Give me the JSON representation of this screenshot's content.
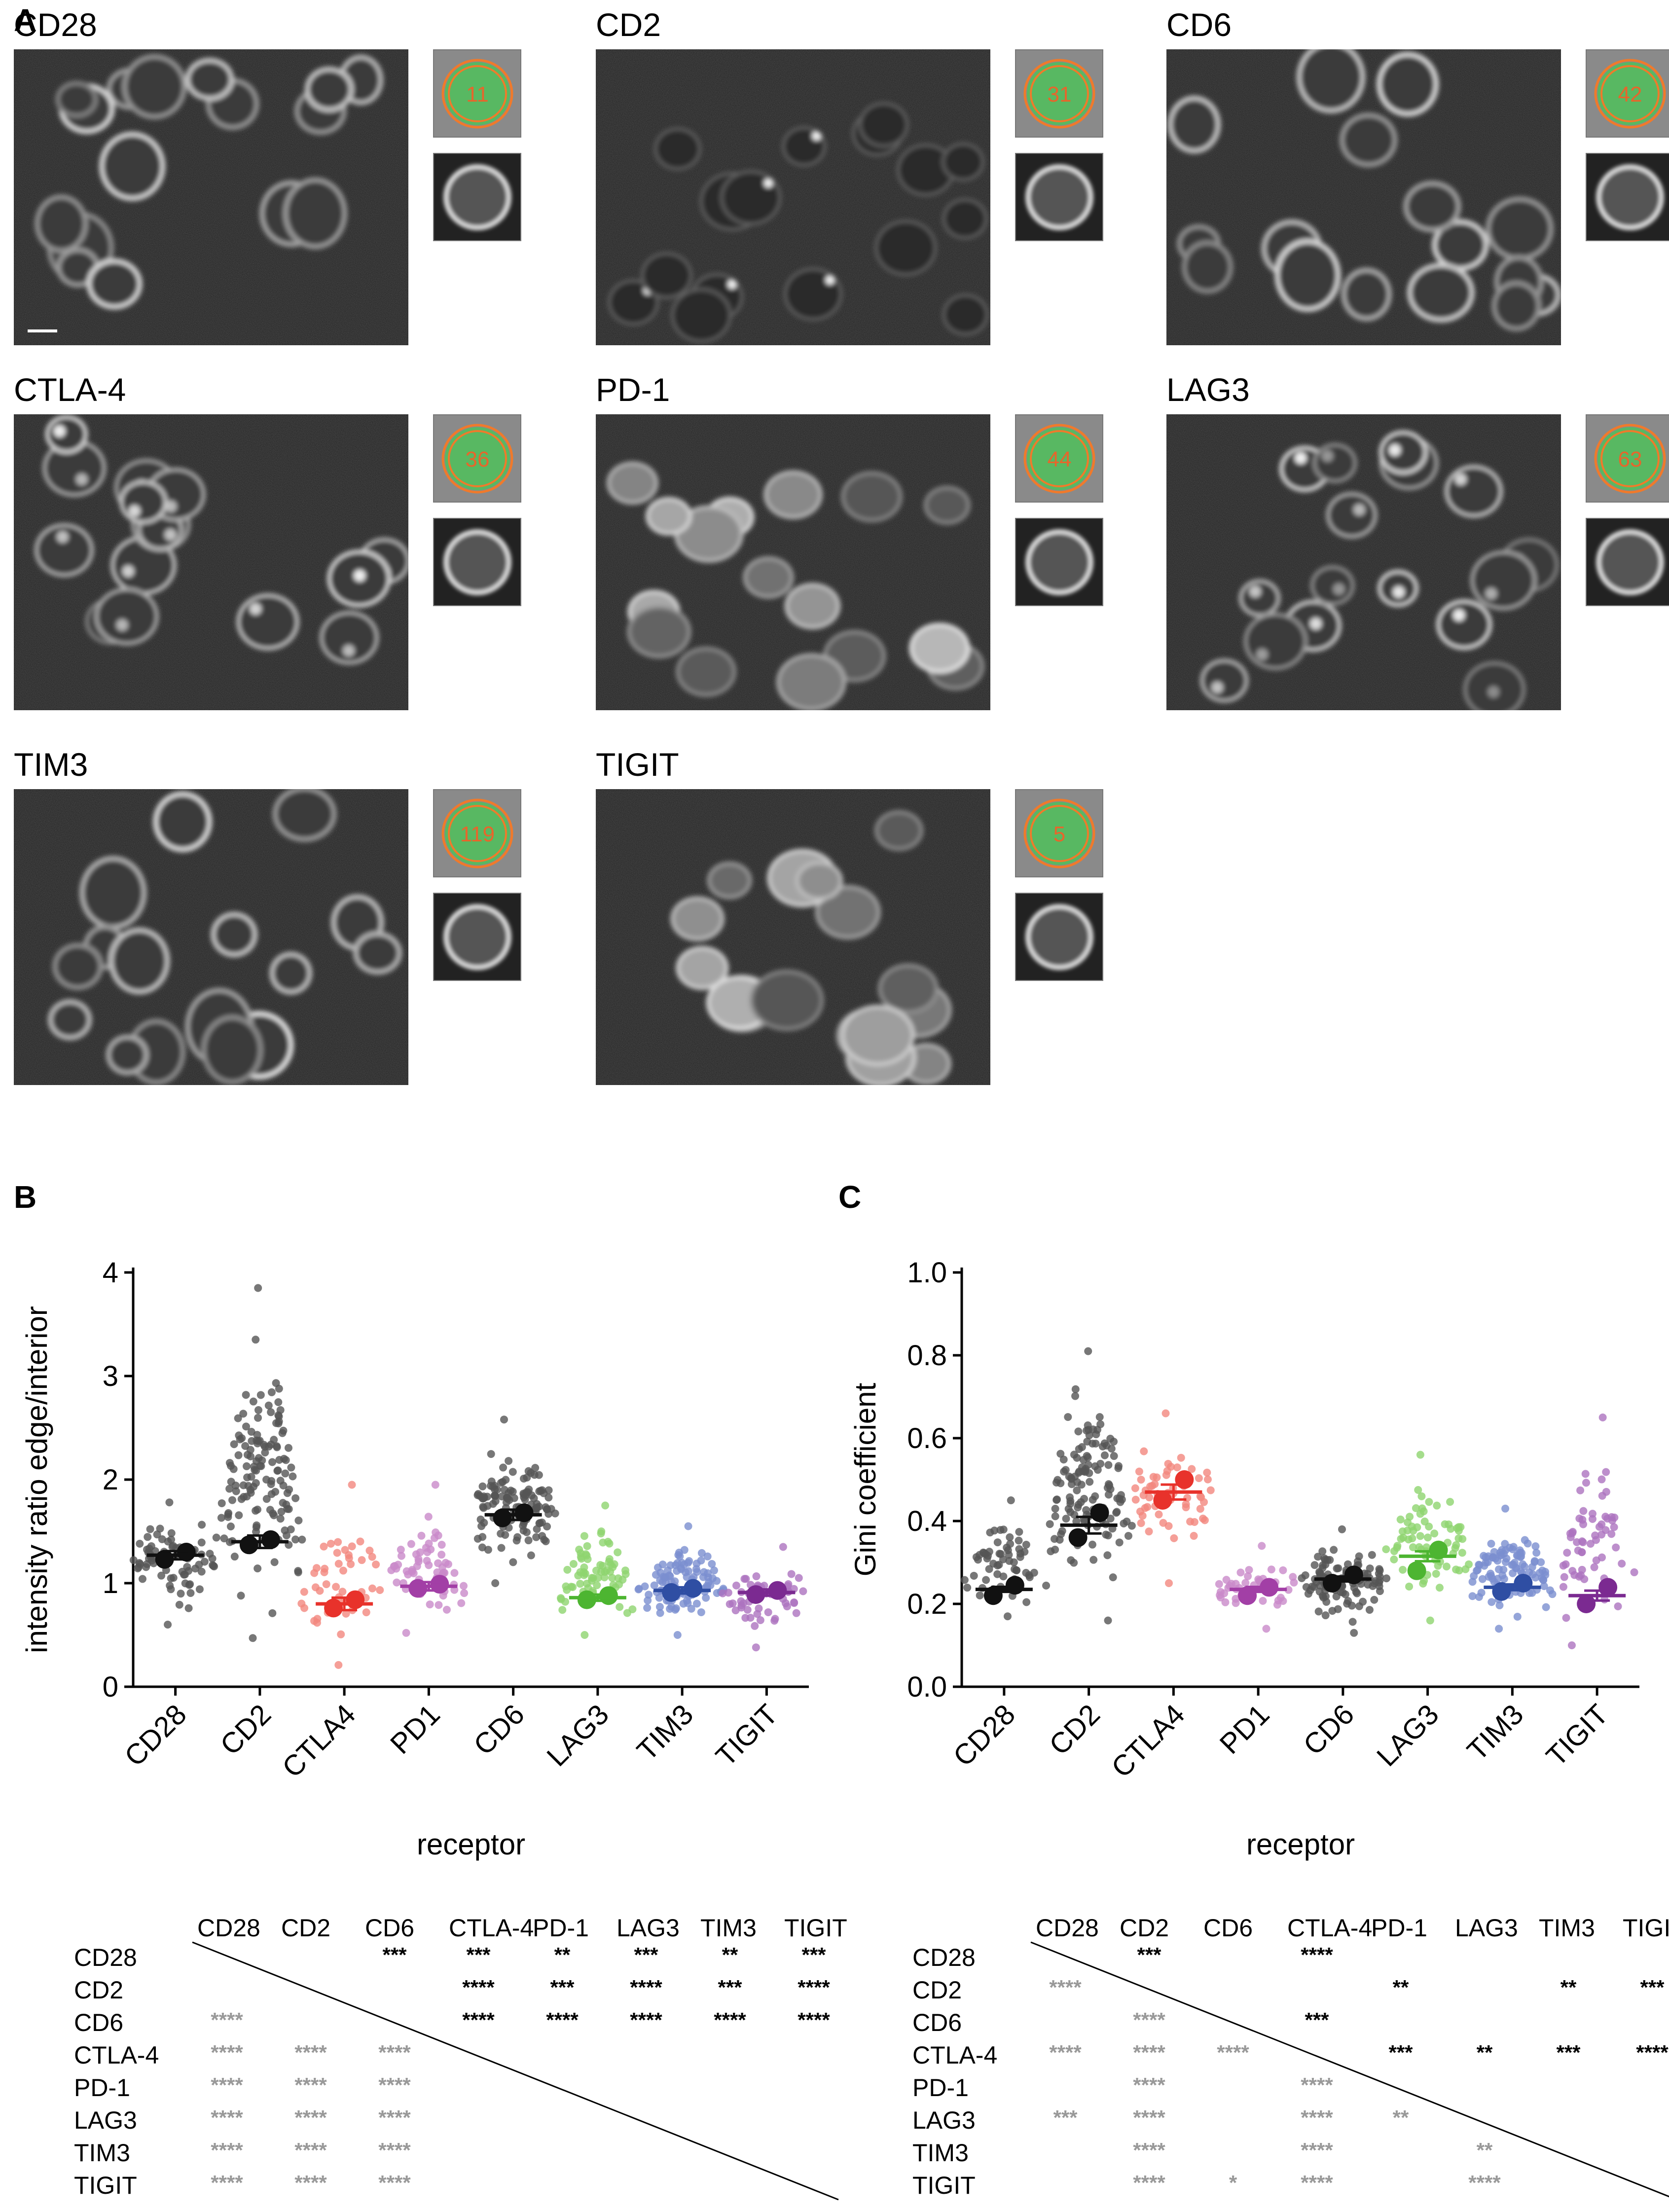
{
  "panel_letters": {
    "a": "A",
    "b": "B",
    "c": "C"
  },
  "panel_a": {
    "images": [
      {
        "label": "CD28",
        "roi_number": "11",
        "style": "rim"
      },
      {
        "label": "CD2",
        "roi_number": "31",
        "style": "spots"
      },
      {
        "label": "CD6",
        "roi_number": "42",
        "style": "rim"
      },
      {
        "label": "CTLA-4",
        "roi_number": "36",
        "style": "patchy"
      },
      {
        "label": "PD-1",
        "roi_number": "44",
        "style": "diffuse"
      },
      {
        "label": "LAG3",
        "roi_number": "63",
        "style": "patchy"
      },
      {
        "label": "TIM3",
        "roi_number": "119",
        "style": "rim"
      },
      {
        "label": "TIGIT",
        "roi_number": "5",
        "style": "diffuse"
      }
    ]
  },
  "chart_data": [
    {
      "type": "scatter",
      "panel": "B",
      "title": "",
      "xlabel": "receptor",
      "ylabel": "intensity ratio edge/interior",
      "ylim": [
        0,
        4
      ],
      "yticks": [
        "0",
        "1",
        "2",
        "3",
        "4"
      ],
      "categories": [
        "CD28",
        "CD2",
        "CTLA4",
        "PD1",
        "CD6",
        "LAG3",
        "TIM3",
        "TIGIT"
      ],
      "colors": [
        "#111111",
        "#111111",
        "#e8322b",
        "#a23fa6",
        "#111111",
        "#4db531",
        "#2f4ea3",
        "#7b2a91"
      ],
      "light_colors": [
        "#555555",
        "#555555",
        "#f3877e",
        "#c98ac9",
        "#555555",
        "#8fd46f",
        "#7a8fd0",
        "#ad73bf"
      ],
      "means": [
        1.27,
        1.4,
        0.8,
        0.97,
        1.66,
        0.86,
        0.93,
        0.91
      ],
      "sem": [
        0.04,
        0.06,
        0.06,
        0.04,
        0.05,
        0.03,
        0.03,
        0.03
      ],
      "spread": [
        [
          0.6,
          1.78
        ],
        [
          0.47,
          3.85
        ],
        [
          0.21,
          1.95
        ],
        [
          0.52,
          1.95
        ],
        [
          1.0,
          2.58
        ],
        [
          0.5,
          1.75
        ],
        [
          0.5,
          1.55
        ],
        [
          0.38,
          1.35
        ]
      ],
      "n_points": [
        80,
        140,
        45,
        60,
        120,
        70,
        100,
        55
      ],
      "big_dots": [
        [
          1.23,
          1.3
        ],
        [
          1.37,
          1.42
        ],
        [
          0.76,
          0.84
        ],
        [
          0.95,
          0.99
        ],
        [
          1.63,
          1.68
        ],
        [
          0.84,
          0.88
        ],
        [
          0.91,
          0.95
        ],
        [
          0.89,
          0.93
        ]
      ],
      "grid": false,
      "legend": "none"
    },
    {
      "type": "scatter",
      "panel": "C",
      "title": "",
      "xlabel": "receptor",
      "ylabel": "Gini coefficient",
      "ylim": [
        0,
        1.0
      ],
      "yticks": [
        "0.0",
        "0.2",
        "0.4",
        "0.6",
        "0.8",
        "1.0"
      ],
      "categories": [
        "CD28",
        "CD2",
        "CTLA4",
        "PD1",
        "CD6",
        "LAG3",
        "TIM3",
        "TIGIT"
      ],
      "colors": [
        "#111111",
        "#111111",
        "#e8322b",
        "#a23fa6",
        "#111111",
        "#4db531",
        "#2f4ea3",
        "#7b2a91"
      ],
      "light_colors": [
        "#555555",
        "#555555",
        "#f3877e",
        "#c98ac9",
        "#555555",
        "#8fd46f",
        "#7a8fd0",
        "#ad73bf"
      ],
      "means": [
        0.235,
        0.39,
        0.47,
        0.235,
        0.26,
        0.315,
        0.24,
        0.22
      ],
      "sem": [
        0.006,
        0.02,
        0.018,
        0.006,
        0.006,
        0.012,
        0.007,
        0.012
      ],
      "spread": [
        [
          0.17,
          0.45
        ],
        [
          0.16,
          0.81
        ],
        [
          0.25,
          0.66
        ],
        [
          0.14,
          0.34
        ],
        [
          0.13,
          0.38
        ],
        [
          0.16,
          0.56
        ],
        [
          0.14,
          0.43
        ],
        [
          0.1,
          0.65
        ]
      ],
      "n_points": [
        60,
        130,
        60,
        40,
        110,
        70,
        100,
        60
      ],
      "big_dots": [
        [
          0.22,
          0.245
        ],
        [
          0.36,
          0.42
        ],
        [
          0.45,
          0.5
        ],
        [
          0.22,
          0.24
        ],
        [
          0.25,
          0.27
        ],
        [
          0.28,
          0.33
        ],
        [
          0.23,
          0.25
        ],
        [
          0.2,
          0.24
        ]
      ],
      "grid": false,
      "legend": "none"
    }
  ],
  "sig_table_b": {
    "columns": [
      "CD28",
      "CD2",
      "CD6",
      "CTLA-4",
      "PD-1",
      "LAG3",
      "TIM3",
      "TIGIT"
    ],
    "rows": [
      "CD28",
      "CD2",
      "CD6",
      "CTLA-4",
      "PD-1",
      "LAG3",
      "TIM3",
      "TIGIT"
    ],
    "cells": [
      {
        "r": 0,
        "c": 2,
        "v": "***",
        "tone": "black"
      },
      {
        "r": 0,
        "c": 3,
        "v": "***",
        "tone": "black"
      },
      {
        "r": 0,
        "c": 4,
        "v": "**",
        "tone": "black"
      },
      {
        "r": 0,
        "c": 5,
        "v": "***",
        "tone": "black"
      },
      {
        "r": 0,
        "c": 6,
        "v": "**",
        "tone": "black"
      },
      {
        "r": 0,
        "c": 7,
        "v": "***",
        "tone": "black"
      },
      {
        "r": 1,
        "c": 3,
        "v": "****",
        "tone": "black"
      },
      {
        "r": 1,
        "c": 4,
        "v": "***",
        "tone": "black"
      },
      {
        "r": 1,
        "c": 5,
        "v": "****",
        "tone": "black"
      },
      {
        "r": 1,
        "c": 6,
        "v": "***",
        "tone": "black"
      },
      {
        "r": 1,
        "c": 7,
        "v": "****",
        "tone": "black"
      },
      {
        "r": 2,
        "c": 0,
        "v": "****",
        "tone": "grey"
      },
      {
        "r": 2,
        "c": 3,
        "v": "****",
        "tone": "black"
      },
      {
        "r": 2,
        "c": 4,
        "v": "****",
        "tone": "black"
      },
      {
        "r": 2,
        "c": 5,
        "v": "****",
        "tone": "black"
      },
      {
        "r": 2,
        "c": 6,
        "v": "****",
        "tone": "black"
      },
      {
        "r": 2,
        "c": 7,
        "v": "****",
        "tone": "black"
      },
      {
        "r": 3,
        "c": 0,
        "v": "****",
        "tone": "grey"
      },
      {
        "r": 3,
        "c": 1,
        "v": "****",
        "tone": "grey"
      },
      {
        "r": 3,
        "c": 2,
        "v": "****",
        "tone": "grey"
      },
      {
        "r": 4,
        "c": 0,
        "v": "****",
        "tone": "grey"
      },
      {
        "r": 4,
        "c": 1,
        "v": "****",
        "tone": "grey"
      },
      {
        "r": 4,
        "c": 2,
        "v": "****",
        "tone": "grey"
      },
      {
        "r": 5,
        "c": 0,
        "v": "****",
        "tone": "grey"
      },
      {
        "r": 5,
        "c": 1,
        "v": "****",
        "tone": "grey"
      },
      {
        "r": 5,
        "c": 2,
        "v": "****",
        "tone": "grey"
      },
      {
        "r": 6,
        "c": 0,
        "v": "****",
        "tone": "grey"
      },
      {
        "r": 6,
        "c": 1,
        "v": "****",
        "tone": "grey"
      },
      {
        "r": 6,
        "c": 2,
        "v": "****",
        "tone": "grey"
      },
      {
        "r": 7,
        "c": 0,
        "v": "****",
        "tone": "grey"
      },
      {
        "r": 7,
        "c": 1,
        "v": "****",
        "tone": "grey"
      },
      {
        "r": 7,
        "c": 2,
        "v": "****",
        "tone": "grey"
      }
    ]
  },
  "sig_table_c": {
    "columns": [
      "CD28",
      "CD2",
      "CD6",
      "CTLA-4",
      "PD-1",
      "LAG3",
      "TIM3",
      "TIGIT"
    ],
    "rows": [
      "CD28",
      "CD2",
      "CD6",
      "CTLA-4",
      "PD-1",
      "LAG3",
      "TIM3",
      "TIGIT"
    ],
    "cells": [
      {
        "r": 0,
        "c": 1,
        "v": "***",
        "tone": "black"
      },
      {
        "r": 0,
        "c": 3,
        "v": "****",
        "tone": "black"
      },
      {
        "r": 1,
        "c": 0,
        "v": "****",
        "tone": "grey"
      },
      {
        "r": 1,
        "c": 4,
        "v": "**",
        "tone": "black"
      },
      {
        "r": 1,
        "c": 6,
        "v": "**",
        "tone": "black"
      },
      {
        "r": 1,
        "c": 7,
        "v": "***",
        "tone": "black"
      },
      {
        "r": 2,
        "c": 1,
        "v": "****",
        "tone": "grey"
      },
      {
        "r": 2,
        "c": 3,
        "v": "***",
        "tone": "black"
      },
      {
        "r": 3,
        "c": 0,
        "v": "****",
        "tone": "grey"
      },
      {
        "r": 3,
        "c": 1,
        "v": "****",
        "tone": "grey"
      },
      {
        "r": 3,
        "c": 2,
        "v": "****",
        "tone": "grey"
      },
      {
        "r": 3,
        "c": 4,
        "v": "***",
        "tone": "black"
      },
      {
        "r": 3,
        "c": 5,
        "v": "**",
        "tone": "black"
      },
      {
        "r": 3,
        "c": 6,
        "v": "***",
        "tone": "black"
      },
      {
        "r": 3,
        "c": 7,
        "v": "****",
        "tone": "black"
      },
      {
        "r": 4,
        "c": 1,
        "v": "****",
        "tone": "grey"
      },
      {
        "r": 4,
        "c": 3,
        "v": "****",
        "tone": "grey"
      },
      {
        "r": 5,
        "c": 0,
        "v": "***",
        "tone": "grey"
      },
      {
        "r": 5,
        "c": 1,
        "v": "****",
        "tone": "grey"
      },
      {
        "r": 5,
        "c": 3,
        "v": "****",
        "tone": "grey"
      },
      {
        "r": 5,
        "c": 4,
        "v": "**",
        "tone": "grey"
      },
      {
        "r": 6,
        "c": 1,
        "v": "****",
        "tone": "grey"
      },
      {
        "r": 6,
        "c": 3,
        "v": "****",
        "tone": "grey"
      },
      {
        "r": 6,
        "c": 5,
        "v": "**",
        "tone": "grey"
      },
      {
        "r": 7,
        "c": 1,
        "v": "****",
        "tone": "grey"
      },
      {
        "r": 7,
        "c": 2,
        "v": "*",
        "tone": "grey"
      },
      {
        "r": 7,
        "c": 3,
        "v": "****",
        "tone": "grey"
      },
      {
        "r": 7,
        "c": 5,
        "v": "****",
        "tone": "grey"
      }
    ]
  }
}
